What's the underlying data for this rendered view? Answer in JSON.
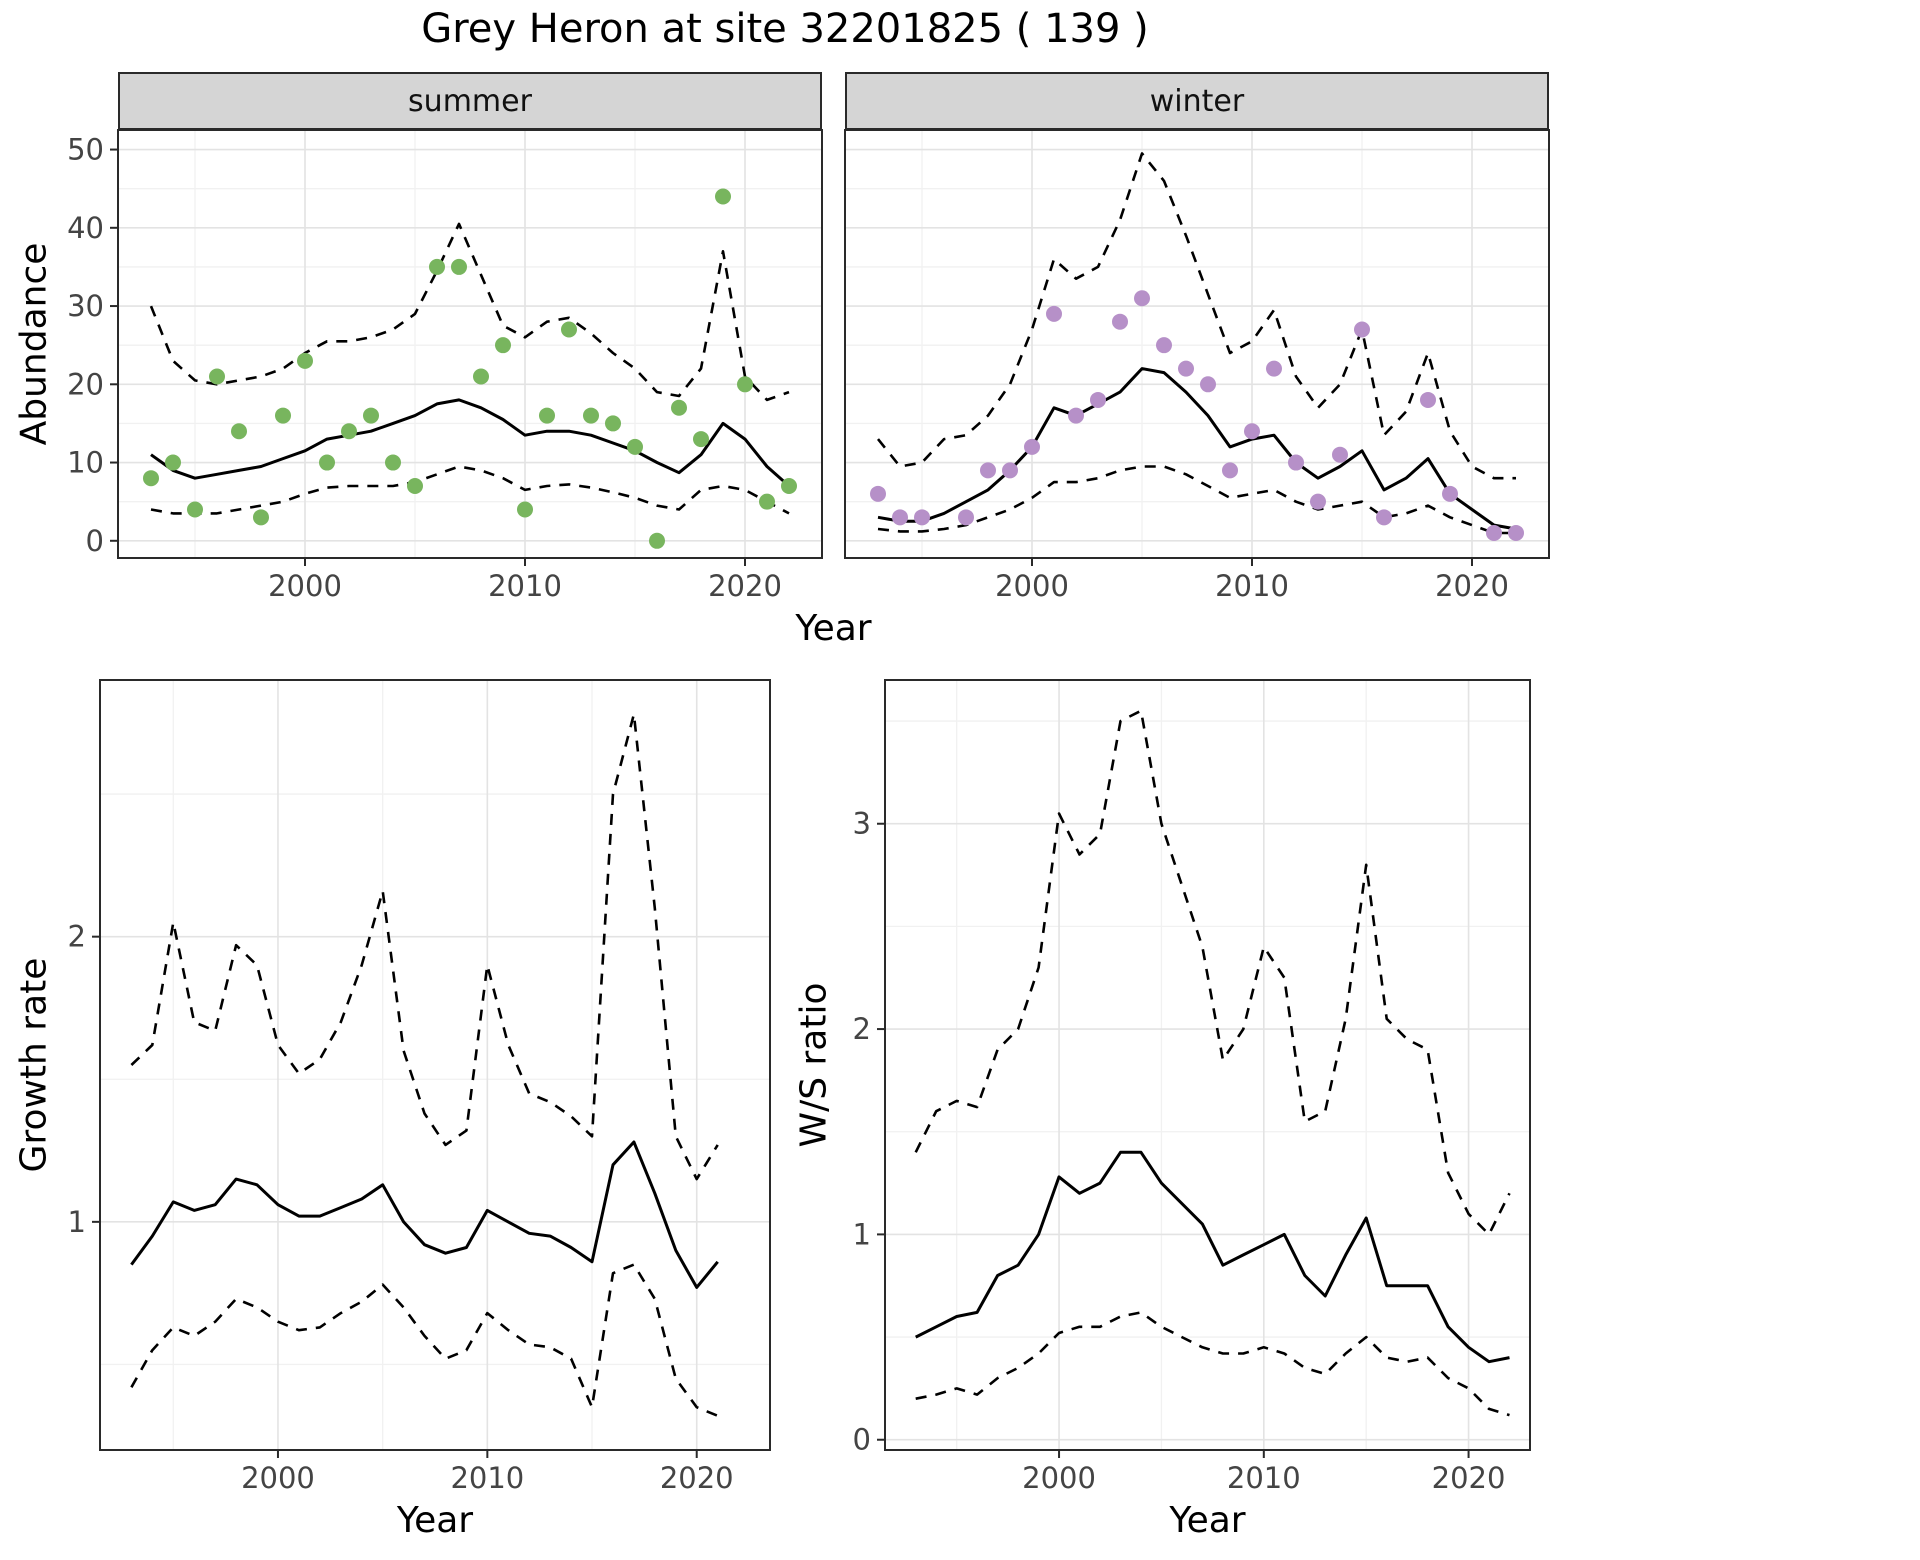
{
  "title": "Grey Heron at site 32201825 ( 139 )",
  "facets": [
    "summer",
    "winter"
  ],
  "axis_labels": {
    "y_top": "Abundance",
    "x": "Year",
    "y_growth": "Growth rate",
    "y_ws": "W/S ratio"
  },
  "colors": {
    "summer_points": "#78b55e",
    "winter_points": "#b690c8",
    "line": "#000000",
    "border": "#2a2a2a",
    "grid_major": "#e3e3e3",
    "grid_minor": "#f1f1f1",
    "strip_bg": "#d5d5d5",
    "tick_text": "#444444"
  },
  "chart_data": [
    {
      "type": "line+scatter",
      "facet": "summer",
      "xlabel": "Year",
      "ylabel": "Abundance",
      "xlim": [
        1991.5,
        2023.5
      ],
      "ylim": [
        -2.2,
        52.5
      ],
      "xticks": [
        2000,
        2010,
        2020
      ],
      "xminor": [
        1995,
        2005,
        2015
      ],
      "yticks": [
        0,
        10,
        20,
        30,
        40,
        50
      ],
      "yminor": [
        5,
        15,
        25,
        35,
        45
      ],
      "x": [
        1993,
        1994,
        1995,
        1996,
        1997,
        1998,
        1999,
        2000,
        2001,
        2002,
        2003,
        2004,
        2005,
        2006,
        2007,
        2008,
        2009,
        2010,
        2011,
        2012,
        2013,
        2014,
        2015,
        2016,
        2017,
        2018,
        2019,
        2020,
        2021,
        2022
      ],
      "series": [
        {
          "name": "modelled mean",
          "style": "solid",
          "values": [
            11,
            9,
            8,
            8.5,
            9,
            9.5,
            10.5,
            11.5,
            13,
            13.5,
            14,
            15,
            16,
            17.5,
            18,
            17,
            15.5,
            13.5,
            14,
            14,
            13.5,
            12.5,
            11.5,
            10,
            8.7,
            11,
            15,
            13,
            9.5,
            7
          ]
        },
        {
          "name": "upper 95% CI",
          "style": "dashed",
          "values": [
            30,
            23,
            20.5,
            20,
            20.5,
            21,
            22,
            24,
            25.5,
            25.5,
            26,
            27,
            29,
            34.5,
            40.5,
            34,
            27.5,
            26,
            28,
            28.5,
            26.5,
            24,
            22,
            19,
            18.5,
            22,
            37,
            21,
            18,
            19
          ]
        },
        {
          "name": "lower 95% CI",
          "style": "dashed",
          "values": [
            4,
            3.5,
            3.5,
            3.5,
            4,
            4.5,
            5,
            6,
            6.8,
            7,
            7,
            7,
            7.5,
            8.5,
            9.5,
            9,
            8,
            6.5,
            7,
            7.2,
            6.8,
            6.2,
            5.5,
            4.5,
            4,
            6.5,
            7,
            6.5,
            5,
            3.5
          ]
        }
      ],
      "points": {
        "name": "observed counts",
        "color": "#78b55e",
        "x": [
          1993,
          1994,
          1995,
          1996,
          1997,
          1998,
          1999,
          2000,
          2001,
          2002,
          2003,
          2004,
          2005,
          2006,
          2007,
          2008,
          2009,
          2010,
          2011,
          2012,
          2013,
          2014,
          2015,
          2016,
          2017,
          2018,
          2019,
          2020,
          2021,
          2022
        ],
        "y": [
          8,
          10,
          4,
          21,
          14,
          3,
          16,
          23,
          10,
          14,
          16,
          10,
          7,
          35,
          35,
          21,
          25,
          4,
          16,
          27,
          16,
          15,
          12,
          0,
          17,
          13,
          44,
          20,
          5,
          7
        ]
      }
    },
    {
      "type": "line+scatter",
      "facet": "winter",
      "xlabel": "Year",
      "ylabel": "Abundance",
      "xlim": [
        1991.5,
        2023.5
      ],
      "ylim": [
        -2.2,
        52.5
      ],
      "xticks": [
        2000,
        2010,
        2020
      ],
      "xminor": [
        1995,
        2005,
        2015
      ],
      "yticks": [
        0,
        10,
        20,
        30,
        40,
        50
      ],
      "yminor": [
        5,
        15,
        25,
        35,
        45
      ],
      "x": [
        1993,
        1994,
        1995,
        1996,
        1997,
        1998,
        1999,
        2000,
        2001,
        2002,
        2003,
        2004,
        2005,
        2006,
        2007,
        2008,
        2009,
        2010,
        2011,
        2012,
        2013,
        2014,
        2015,
        2016,
        2017,
        2018,
        2019,
        2020,
        2021,
        2022
      ],
      "series": [
        {
          "name": "modelled mean",
          "style": "solid",
          "values": [
            3,
            2.5,
            2.5,
            3.5,
            5,
            6.5,
            9,
            12,
            17,
            16,
            17.5,
            19,
            22,
            21.5,
            19,
            16,
            12,
            13,
            13.5,
            10,
            8,
            9.5,
            11.5,
            6.5,
            8,
            10.5,
            6,
            4,
            2,
            1.5
          ]
        },
        {
          "name": "upper 95% CI",
          "style": "dashed",
          "values": [
            13,
            9.5,
            10,
            13,
            13.5,
            16,
            20,
            27,
            36,
            33.5,
            35,
            41,
            49.5,
            46,
            39,
            31.5,
            24,
            25.5,
            29.5,
            21,
            17,
            20,
            27,
            13.5,
            16.5,
            24,
            14,
            9.5,
            8,
            8
          ]
        },
        {
          "name": "lower 95% CI",
          "style": "dashed",
          "values": [
            1.5,
            1.2,
            1.2,
            1.5,
            2,
            3,
            4,
            5.5,
            7.5,
            7.5,
            8,
            9,
            9.5,
            9.5,
            8.5,
            7,
            5.5,
            6,
            6.5,
            5,
            4,
            4.5,
            5,
            3,
            3.5,
            4.5,
            3,
            2,
            1,
            1
          ]
        }
      ],
      "points": {
        "name": "observed counts",
        "color": "#b690c8",
        "x": [
          1993,
          1994,
          1995,
          1997,
          1998,
          1999,
          2000,
          2001,
          2002,
          2003,
          2004,
          2005,
          2006,
          2007,
          2008,
          2009,
          2010,
          2011,
          2012,
          2013,
          2014,
          2015,
          2016,
          2018,
          2019,
          2021,
          2022
        ],
        "y": [
          6,
          3,
          3,
          3,
          9,
          9,
          12,
          29,
          16,
          18,
          28,
          31,
          25,
          22,
          20,
          9,
          14,
          22,
          10,
          5,
          11,
          27,
          3,
          18,
          6,
          1,
          1
        ]
      }
    },
    {
      "type": "line",
      "facet": null,
      "xlabel": "Year",
      "ylabel": "Growth rate",
      "xlim": [
        1991.5,
        2023.5
      ],
      "ylim": [
        0.2,
        2.9
      ],
      "xticks": [
        2000,
        2010,
        2020
      ],
      "xminor": [
        1995,
        2005,
        2015
      ],
      "yticks": [
        1,
        2
      ],
      "yminor": [
        0.5,
        1.5,
        2.5
      ],
      "x": [
        1993,
        1994,
        1995,
        1996,
        1997,
        1998,
        1999,
        2000,
        2001,
        2002,
        2003,
        2004,
        2005,
        2006,
        2007,
        2008,
        2009,
        2010,
        2011,
        2012,
        2013,
        2014,
        2015,
        2016,
        2017,
        2018,
        2019,
        2020,
        2021
      ],
      "series": [
        {
          "name": "modelled growth rate",
          "style": "solid",
          "values": [
            0.85,
            0.95,
            1.07,
            1.04,
            1.06,
            1.15,
            1.13,
            1.06,
            1.02,
            1.02,
            1.05,
            1.08,
            1.13,
            1.0,
            0.92,
            0.89,
            0.91,
            1.04,
            1.0,
            0.96,
            0.95,
            0.91,
            0.86,
            1.2,
            1.28,
            1.1,
            0.9,
            0.77,
            0.86
          ]
        },
        {
          "name": "upper 95% CI",
          "style": "dashed",
          "values": [
            1.55,
            1.62,
            2.05,
            1.7,
            1.67,
            1.97,
            1.9,
            1.62,
            1.52,
            1.57,
            1.7,
            1.9,
            2.16,
            1.6,
            1.38,
            1.27,
            1.32,
            1.9,
            1.62,
            1.45,
            1.42,
            1.37,
            1.3,
            2.5,
            2.78,
            2.1,
            1.3,
            1.15,
            1.27
          ]
        },
        {
          "name": "lower 95% CI",
          "style": "dashed",
          "values": [
            0.42,
            0.55,
            0.63,
            0.6,
            0.65,
            0.73,
            0.7,
            0.65,
            0.62,
            0.63,
            0.68,
            0.72,
            0.78,
            0.7,
            0.6,
            0.52,
            0.55,
            0.68,
            0.62,
            0.57,
            0.56,
            0.52,
            0.35,
            0.82,
            0.85,
            0.73,
            0.45,
            0.35,
            0.32
          ]
        }
      ]
    },
    {
      "type": "line",
      "facet": null,
      "xlabel": "Year",
      "ylabel": "W/S ratio",
      "xlim": [
        1991.5,
        2023
      ],
      "ylim": [
        -0.05,
        3.7
      ],
      "xticks": [
        2000,
        2010,
        2020
      ],
      "xminor": [
        1995,
        2005,
        2015
      ],
      "yticks": [
        0,
        1,
        2,
        3
      ],
      "yminor": [
        0.5,
        1.5,
        2.5,
        3.5
      ],
      "x": [
        1993,
        1994,
        1995,
        1996,
        1997,
        1998,
        1999,
        2000,
        2001,
        2002,
        2003,
        2004,
        2005,
        2006,
        2007,
        2008,
        2009,
        2010,
        2011,
        2012,
        2013,
        2014,
        2015,
        2016,
        2017,
        2018,
        2019,
        2020,
        2021,
        2022
      ],
      "series": [
        {
          "name": "modelled W/S ratio",
          "style": "solid",
          "values": [
            0.5,
            0.55,
            0.6,
            0.62,
            0.8,
            0.85,
            1.0,
            1.28,
            1.2,
            1.25,
            1.4,
            1.4,
            1.25,
            1.15,
            1.05,
            0.85,
            0.9,
            0.95,
            1.0,
            0.8,
            0.7,
            0.9,
            1.08,
            0.75,
            0.75,
            0.75,
            0.55,
            0.45,
            0.38,
            0.4
          ]
        },
        {
          "name": "upper 95% CI",
          "style": "dashed",
          "values": [
            1.4,
            1.6,
            1.65,
            1.62,
            1.9,
            2.0,
            2.3,
            3.05,
            2.85,
            2.95,
            3.5,
            3.55,
            3.0,
            2.7,
            2.4,
            1.85,
            2.0,
            2.4,
            2.25,
            1.55,
            1.6,
            2.05,
            2.8,
            2.05,
            1.95,
            1.9,
            1.3,
            1.1,
            1.0,
            1.2
          ]
        },
        {
          "name": "lower 95% CI",
          "style": "dashed",
          "values": [
            0.2,
            0.22,
            0.25,
            0.22,
            0.3,
            0.35,
            0.42,
            0.52,
            0.55,
            0.55,
            0.6,
            0.62,
            0.55,
            0.5,
            0.45,
            0.42,
            0.42,
            0.45,
            0.42,
            0.35,
            0.32,
            0.42,
            0.5,
            0.4,
            0.38,
            0.4,
            0.3,
            0.25,
            0.15,
            0.12
          ]
        }
      ]
    }
  ]
}
